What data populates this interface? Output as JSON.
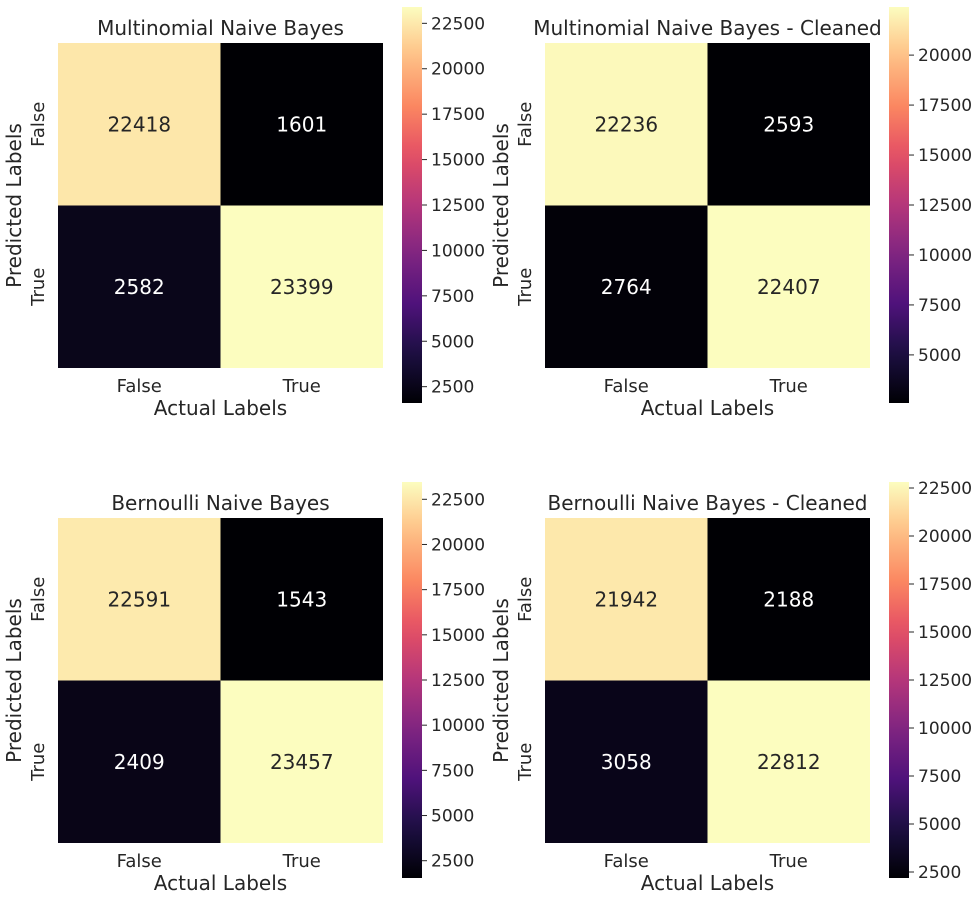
{
  "chart_data": [
    {
      "type": "heatmap",
      "title": "Multinomial Naive Bayes",
      "xlabel": "Actual Labels",
      "ylabel": "Predicted Labels",
      "x_categories": [
        "False",
        "True"
      ],
      "y_categories": [
        "False",
        "True"
      ],
      "values": [
        [
          22418,
          1601
        ],
        [
          2582,
          23399
        ]
      ],
      "colormap": "magma",
      "colorbar": {
        "range": [
          1601,
          23399
        ],
        "ticks": [
          2500,
          5000,
          7500,
          10000,
          12500,
          15000,
          17500,
          20000,
          22500
        ]
      }
    },
    {
      "type": "heatmap",
      "title": "Multinomial Naive Bayes - Cleaned",
      "xlabel": "Actual Labels",
      "ylabel": "Predicted Labels",
      "x_categories": [
        "False",
        "True"
      ],
      "y_categories": [
        "False",
        "True"
      ],
      "values": [
        [
          22236,
          2593
        ],
        [
          2764,
          22407
        ]
      ],
      "colormap": "magma",
      "colorbar": {
        "range": [
          2593,
          22407
        ],
        "ticks": [
          5000,
          7500,
          10000,
          12500,
          15000,
          17500,
          20000
        ]
      }
    },
    {
      "type": "heatmap",
      "title": "Bernoulli Naive Bayes",
      "xlabel": "Actual Labels",
      "ylabel": "Predicted Labels",
      "x_categories": [
        "False",
        "True"
      ],
      "y_categories": [
        "False",
        "True"
      ],
      "values": [
        [
          22591,
          1543
        ],
        [
          2409,
          23457
        ]
      ],
      "colormap": "magma",
      "colorbar": {
        "range": [
          1543,
          23457
        ],
        "ticks": [
          2500,
          5000,
          7500,
          10000,
          12500,
          15000,
          17500,
          20000,
          22500
        ]
      }
    },
    {
      "type": "heatmap",
      "title": "Bernoulli Naive Bayes - Cleaned",
      "xlabel": "Actual Labels",
      "ylabel": "Predicted Labels",
      "x_categories": [
        "False",
        "True"
      ],
      "y_categories": [
        "False",
        "True"
      ],
      "values": [
        [
          21942,
          2188
        ],
        [
          3058,
          22812
        ]
      ],
      "colormap": "magma",
      "colorbar": {
        "range": [
          2188,
          22812
        ],
        "ticks": [
          2500,
          5000,
          7500,
          10000,
          12500,
          15000,
          17500,
          20000,
          22500
        ]
      }
    }
  ]
}
